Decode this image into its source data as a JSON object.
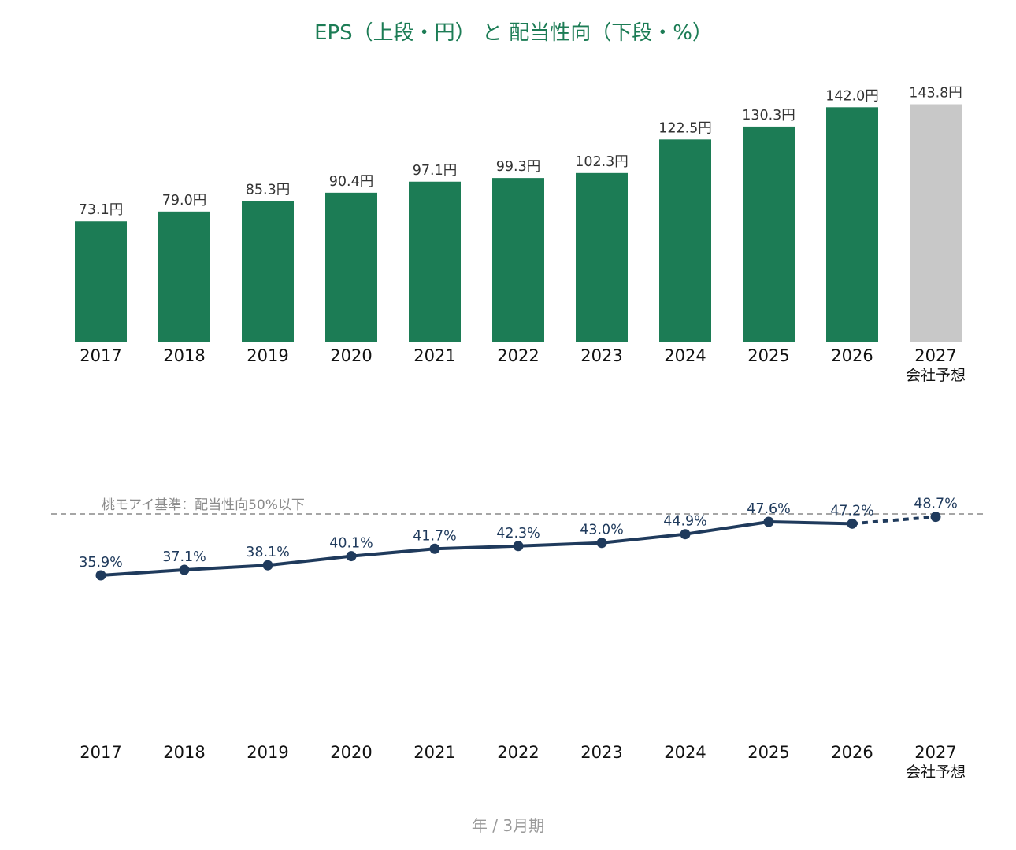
{
  "title": "EPS（上段・円） と 配当性向（下段・%）",
  "footer": "年 / 3月期",
  "colors": {
    "title": "#1c7c55",
    "bar_actual": "#1c7c55",
    "bar_forecast": "#c8c8c8",
    "line": "#1f3a5c",
    "reference": "#a6a6a6"
  },
  "chart_data": [
    {
      "type": "bar",
      "categories": [
        "2017",
        "2018",
        "2019",
        "2020",
        "2021",
        "2022",
        "2023",
        "2024",
        "2025",
        "2026",
        "2027"
      ],
      "category_sublabels": [
        "",
        "",
        "",
        "",
        "",
        "",
        "",
        "",
        "",
        "",
        "会社予想"
      ],
      "values": [
        73.1,
        79.0,
        85.3,
        90.4,
        97.1,
        99.3,
        102.3,
        122.5,
        130.3,
        142.0,
        143.8
      ],
      "value_labels": [
        "73.1円",
        "79.0円",
        "85.3円",
        "90.4円",
        "97.1円",
        "99.3円",
        "102.3円",
        "122.5円",
        "130.3円",
        "142.0円",
        "143.8円"
      ],
      "forecast": [
        false,
        false,
        false,
        false,
        false,
        false,
        false,
        false,
        false,
        false,
        true
      ],
      "ylim": [
        0,
        145
      ],
      "grid": false
    },
    {
      "type": "line",
      "categories": [
        "2017",
        "2018",
        "2019",
        "2020",
        "2021",
        "2022",
        "2023",
        "2024",
        "2025",
        "2026",
        "2027"
      ],
      "category_sublabels": [
        "",
        "",
        "",
        "",
        "",
        "",
        "",
        "",
        "",
        "",
        "会社予想"
      ],
      "values": [
        35.9,
        37.1,
        38.1,
        40.1,
        41.7,
        42.3,
        43.0,
        44.9,
        47.6,
        47.2,
        48.7
      ],
      "value_labels": [
        "35.9%",
        "37.1%",
        "38.1%",
        "40.1%",
        "41.7%",
        "42.3%",
        "43.0%",
        "44.9%",
        "47.6%",
        "47.2%",
        "48.7%"
      ],
      "forecast": [
        false,
        false,
        false,
        false,
        false,
        false,
        false,
        false,
        false,
        false,
        true
      ],
      "reference_line": {
        "value": 50,
        "label": "桃モアイ基準：配当性向50%以下"
      },
      "ylim": [
        0,
        55
      ],
      "grid": false
    }
  ]
}
